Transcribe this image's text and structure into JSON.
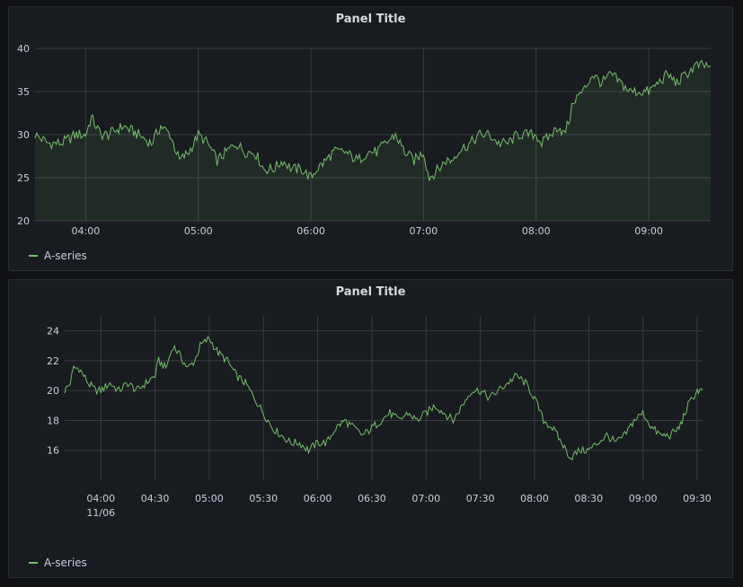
{
  "colors": {
    "series": "#73bf69",
    "grid": "#3a3d42",
    "panel_bg": "#181b1f",
    "page_bg": "#111217"
  },
  "panels": [
    {
      "title": "Panel Title",
      "legend": "A-series",
      "chart_data": {
        "type": "area",
        "title": "Panel Title",
        "x_unit": "time (HH:MM)",
        "xlim": [
          "03:33",
          "09:33"
        ],
        "xticks": [
          "04:00",
          "05:00",
          "06:00",
          "07:00",
          "08:00",
          "09:00"
        ],
        "ylim": [
          20,
          40
        ],
        "yticks": [
          20,
          25,
          30,
          35,
          40
        ],
        "grid": true,
        "legend_position": "bottom-left",
        "series": [
          {
            "name": "A-series",
            "x": [
              "03:33",
              "03:40",
              "03:47",
              "03:55",
              "04:00",
              "04:03",
              "04:08",
              "04:12",
              "04:20",
              "04:28",
              "04:35",
              "04:40",
              "04:45",
              "04:50",
              "04:55",
              "05:00",
              "05:05",
              "05:10",
              "05:15",
              "05:20",
              "05:25",
              "05:30",
              "05:35",
              "05:40",
              "05:45",
              "05:50",
              "05:55",
              "06:00",
              "06:03",
              "06:08",
              "06:12",
              "06:18",
              "06:25",
              "06:30",
              "06:35",
              "06:40",
              "06:45",
              "06:50",
              "06:55",
              "07:00",
              "07:03",
              "07:08",
              "07:12",
              "07:15",
              "07:18",
              "07:25",
              "07:30",
              "07:35",
              "07:40",
              "07:45",
              "07:50",
              "07:55",
              "08:00",
              "08:03",
              "08:08",
              "08:12",
              "08:15",
              "08:18",
              "08:20",
              "08:25",
              "08:30",
              "08:35",
              "08:40",
              "08:45",
              "08:50",
              "08:55",
              "09:00",
              "09:05",
              "09:10",
              "09:15",
              "09:20",
              "09:25",
              "09:33"
            ],
            "y": [
              30,
              29,
              29,
              30,
              30,
              32,
              30,
              30,
              31,
              30,
              29,
              31,
              30,
              27,
              28,
              30,
              29,
              27,
              28,
              29,
              28,
              28,
              26,
              26,
              27,
              26,
              26,
              25,
              26,
              27,
              28,
              28,
              27,
              28,
              28,
              29,
              30,
              28,
              27,
              28,
              25,
              26,
              27,
              27,
              28,
              29,
              30,
              30,
              29,
              29,
              30,
              30,
              30,
              29,
              30,
              31,
              30,
              32,
              34,
              35,
              37,
              36,
              37,
              36,
              35,
              35,
              35,
              36,
              37,
              36,
              37,
              38,
              38
            ]
          }
        ]
      }
    },
    {
      "title": "Panel Title",
      "legend": "A-series",
      "chart_data": {
        "type": "line",
        "title": "Panel Title",
        "x_unit": "time (HH:MM)",
        "xlim": [
          "03:40",
          "09:33"
        ],
        "xticks": [
          "04:00",
          "04:30",
          "05:00",
          "05:30",
          "06:00",
          "06:30",
          "07:00",
          "07:30",
          "08:00",
          "08:30",
          "09:00",
          "09:30"
        ],
        "date_label": "11/06",
        "ylim": [
          14,
          25
        ],
        "yticks": [
          16,
          18,
          20,
          22,
          24
        ],
        "grid": true,
        "legend_position": "bottom-left",
        "series": [
          {
            "name": "A-series",
            "x": [
              "03:40",
              "03:43",
              "03:45",
              "03:48",
              "03:53",
              "03:57",
              "04:00",
              "04:05",
              "04:10",
              "04:15",
              "04:20",
              "04:25",
              "04:30",
              "04:32",
              "04:36",
              "04:40",
              "04:43",
              "04:48",
              "04:52",
              "04:55",
              "05:00",
              "05:05",
              "05:10",
              "05:15",
              "05:20",
              "05:25",
              "05:30",
              "05:35",
              "05:40",
              "05:45",
              "05:50",
              "05:55",
              "06:00",
              "06:05",
              "06:10",
              "06:15",
              "06:20",
              "06:25",
              "06:30",
              "06:35",
              "06:40",
              "06:45",
              "06:50",
              "06:55",
              "07:00",
              "07:05",
              "07:10",
              "07:15",
              "07:20",
              "07:25",
              "07:30",
              "07:35",
              "07:40",
              "07:45",
              "07:50",
              "07:55",
              "08:00",
              "08:05",
              "08:10",
              "08:15",
              "08:20",
              "08:25",
              "08:30",
              "08:35",
              "08:40",
              "08:45",
              "08:50",
              "08:55",
              "09:00",
              "09:05",
              "09:10",
              "09:15",
              "09:20",
              "09:25",
              "09:30",
              "09:33"
            ],
            "y": [
              20,
              20.5,
              21.5,
              21.5,
              20.5,
              20,
              20,
              20.5,
              20,
              20.5,
              20,
              20.5,
              21,
              22,
              21.5,
              23,
              22.5,
              21.5,
              22,
              23,
              23.5,
              22.5,
              22,
              21,
              20.5,
              19.5,
              18.5,
              17.5,
              17,
              16.5,
              16.5,
              16,
              16.5,
              16.5,
              17.5,
              18,
              17.5,
              17,
              17.5,
              18,
              18.5,
              18,
              18.5,
              18,
              18.5,
              19,
              18.5,
              18,
              19,
              20,
              20,
              19.5,
              20,
              20.5,
              21,
              20.5,
              19.5,
              18,
              17.5,
              16.5,
              15.5,
              16,
              16,
              16.5,
              17,
              16.5,
              17,
              18,
              18.5,
              17.5,
              17,
              17,
              17.5,
              19,
              20,
              20
            ]
          }
        ]
      }
    }
  ]
}
